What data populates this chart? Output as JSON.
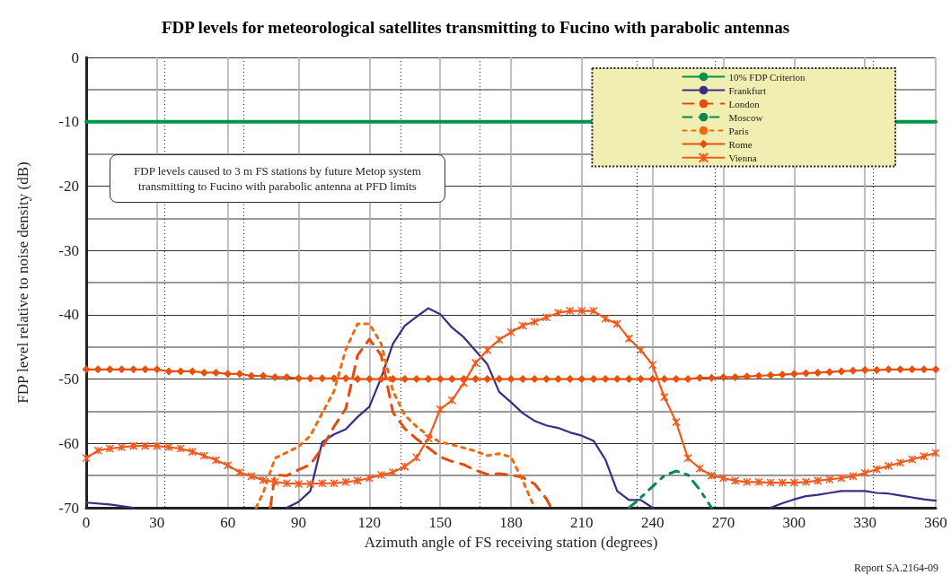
{
  "chart_data": {
    "type": "line",
    "title": "FDP levels for meteorological satellites transmitting to Fucino with parabolic antennas",
    "xlabel": "Azimuth angle of FS receiving station (degrees)",
    "ylabel": "FDP level relative to noise density (dB)",
    "xlim": [
      0,
      360
    ],
    "xticks": [
      0,
      30,
      60,
      90,
      120,
      150,
      180,
      210,
      240,
      270,
      300,
      330,
      360
    ],
    "ylim": [
      -70,
      0
    ],
    "yticks": [
      -70,
      -60,
      -50,
      -40,
      -30,
      -20,
      -10,
      0
    ],
    "grid": true,
    "legend": "top right",
    "annotations": [
      "FDP levels caused to 3 m FS stations by future Metop system transmitting to Fucino with parabolic antenna at PFD limits",
      "Report SA.2164-09"
    ],
    "series": [
      {
        "name": "10% FDP Criterion",
        "color": "#00944a",
        "line_style": "solid",
        "marker": "none",
        "x": [
          0,
          360
        ],
        "values": [
          -10,
          -10
        ]
      },
      {
        "name": "Frankfurt",
        "color": "#3d2b86",
        "line_style": "solid",
        "marker": "none",
        "x": [
          0,
          10,
          20,
          50,
          85,
          90,
          95,
          100,
          105,
          110,
          115,
          120,
          125,
          130,
          135,
          140,
          145,
          150,
          155,
          160,
          165,
          170,
          175,
          180,
          185,
          190,
          195,
          200,
          205,
          210,
          215,
          220,
          225,
          230,
          235,
          240,
          265,
          290,
          295,
          300,
          305,
          310,
          315,
          320,
          325,
          330,
          335,
          340,
          345,
          350,
          355,
          360
        ],
        "values": [
          -69.2,
          -69.5,
          -70,
          null,
          -70,
          -69.1,
          -67.4,
          -59.8,
          -58.6,
          -57.8,
          -55.9,
          -54.3,
          -49.8,
          -44.5,
          -41.7,
          -40.3,
          -39,
          -39.9,
          -42,
          -43.5,
          -45.6,
          -47.7,
          -52,
          -53.6,
          -55.3,
          -56.5,
          -57.2,
          -57.6,
          -58.3,
          -58.8,
          -59.6,
          -62.5,
          -67.4,
          -68.8,
          -68.8,
          -70,
          null,
          -70,
          -69.3,
          -68.7,
          -68.2,
          -68,
          -67.7,
          -67.4,
          -67.4,
          -67.4,
          -67.7,
          -67.8,
          -68.1,
          -68.4,
          -68.7,
          -68.9
        ]
      },
      {
        "name": "London",
        "color": "#e84a0c",
        "line_style": "dashed",
        "marker": "none",
        "x": [
          78,
          80,
          85,
          90,
          95,
          100,
          105,
          110,
          115,
          120,
          125,
          130,
          135,
          140,
          145,
          150,
          155,
          160,
          165,
          170,
          175,
          180,
          185,
          190,
          195,
          197
        ],
        "values": [
          -70,
          -64.9,
          -65,
          -64.1,
          -63.3,
          -60.7,
          -57.4,
          -54.6,
          -46.3,
          -43.8,
          -46.3,
          -55.2,
          -57.7,
          -59.3,
          -60.7,
          -62.1,
          -62.8,
          -63.3,
          -64.2,
          -64.8,
          -64.7,
          -64.9,
          -65.3,
          -66.3,
          -68.6,
          -70
        ]
      },
      {
        "name": "Moscow",
        "color": "#00894a",
        "line_style": "dashdot",
        "marker": "none",
        "x": [
          230,
          233,
          240,
          245,
          250,
          255,
          260,
          265
        ],
        "values": [
          -70,
          -69.1,
          -66.7,
          -65,
          -64.3,
          -64.9,
          -67.2,
          -70
        ]
      },
      {
        "name": "Paris",
        "color": "#f26a0f",
        "line_style": "dotted",
        "marker": "none",
        "x": [
          72,
          75,
          80,
          85,
          90,
          95,
          100,
          105,
          110,
          115,
          120,
          125,
          130,
          135,
          140,
          145,
          150,
          155,
          160,
          165,
          170,
          175,
          180,
          185,
          190
        ],
        "values": [
          -70,
          -67.7,
          -62.3,
          -61.4,
          -60.5,
          -58.8,
          -55.3,
          -51.9,
          -45.4,
          -41.4,
          -41.4,
          -44.5,
          -51.9,
          -55.6,
          -57.4,
          -58.8,
          -59.8,
          -60.2,
          -60.7,
          -61.2,
          -61.9,
          -61.6,
          -62.1,
          -65.8,
          -70
        ]
      },
      {
        "name": "Rome",
        "color": "#e8500c",
        "line_style": "solid",
        "marker": "diamond",
        "x": [
          0,
          5,
          10,
          15,
          20,
          25,
          30,
          35,
          40,
          45,
          50,
          55,
          60,
          65,
          70,
          75,
          80,
          85,
          90,
          95,
          100,
          105,
          110,
          115,
          120,
          125,
          130,
          135,
          140,
          145,
          150,
          155,
          160,
          165,
          170,
          175,
          180,
          185,
          190,
          195,
          200,
          205,
          210,
          215,
          220,
          225,
          230,
          235,
          240,
          245,
          250,
          255,
          260,
          265,
          270,
          275,
          280,
          285,
          290,
          295,
          300,
          305,
          310,
          315,
          320,
          325,
          330,
          335,
          340,
          345,
          350,
          355,
          360
        ],
        "values": [
          -48.5,
          -48.5,
          -48.5,
          -48.5,
          -48.5,
          -48.5,
          -48.5,
          -48.8,
          -48.8,
          -48.8,
          -49,
          -49,
          -49.2,
          -49.2,
          -49.5,
          -49.5,
          -49.7,
          -49.7,
          -49.9,
          -49.9,
          -49.9,
          -49.9,
          -49.9,
          -50,
          -50,
          -50,
          -50,
          -50,
          -50,
          -50,
          -50,
          -50,
          -50,
          -50,
          -50,
          -50,
          -50,
          -50,
          -50,
          -50,
          -50,
          -50,
          -50,
          -50,
          -50,
          -50,
          -50,
          -50,
          -50,
          -50,
          -50,
          -50,
          -49.8,
          -49.8,
          -49.7,
          -49.7,
          -49.6,
          -49.5,
          -49.4,
          -49.3,
          -49.2,
          -49.1,
          -49,
          -48.9,
          -48.8,
          -48.7,
          -48.6,
          -48.6,
          -48.5,
          -48.5,
          -48.5,
          -48.5,
          -48.5
        ]
      },
      {
        "name": "Vienna",
        "color": "#f05a1e",
        "line_style": "solid",
        "marker": "cross",
        "x": [
          0,
          5,
          10,
          15,
          20,
          25,
          30,
          35,
          40,
          45,
          50,
          55,
          60,
          65,
          70,
          75,
          80,
          85,
          90,
          95,
          100,
          105,
          110,
          115,
          120,
          125,
          130,
          135,
          140,
          145,
          150,
          155,
          160,
          165,
          170,
          175,
          180,
          185,
          190,
          195,
          200,
          205,
          210,
          215,
          220,
          225,
          230,
          235,
          240,
          245,
          250,
          255,
          260,
          265,
          270,
          275,
          280,
          285,
          290,
          295,
          300,
          305,
          310,
          315,
          320,
          325,
          330,
          335,
          340,
          345,
          350,
          355,
          360
        ],
        "values": [
          -62.3,
          -61.1,
          -60.8,
          -60.6,
          -60.4,
          -60.4,
          -60.4,
          -60.6,
          -60.8,
          -61.3,
          -61.9,
          -62.6,
          -63.4,
          -64.5,
          -65.1,
          -65.7,
          -66,
          -66.2,
          -66.3,
          -66.3,
          -66.2,
          -66.2,
          -66,
          -65.8,
          -65.4,
          -64.9,
          -64.5,
          -63.6,
          -62.2,
          -59.2,
          -54.7,
          -53.3,
          -50.6,
          -47.5,
          -45.5,
          -43.9,
          -42.7,
          -41.7,
          -41.1,
          -40.4,
          -39.7,
          -39.4,
          -39.4,
          -39.4,
          -40.6,
          -41.4,
          -43.7,
          -45.5,
          -47.8,
          -52.8,
          -56.7,
          -62.3,
          -63.9,
          -65,
          -65.4,
          -65.8,
          -66,
          -66,
          -66.1,
          -66.1,
          -66.1,
          -66,
          -65.8,
          -65.6,
          -65.4,
          -65.1,
          -64.6,
          -64,
          -63.5,
          -63,
          -62.5,
          -62,
          -61.5
        ]
      }
    ]
  }
}
